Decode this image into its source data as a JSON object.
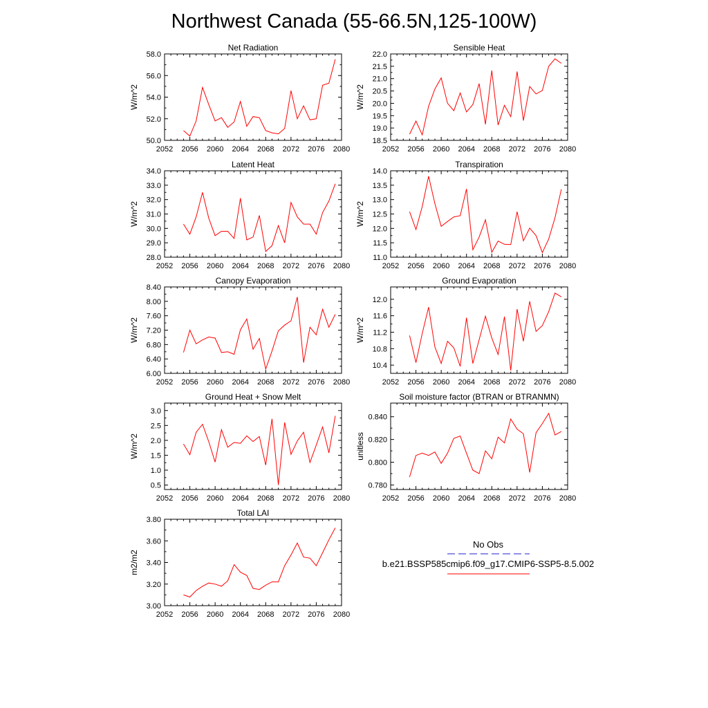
{
  "title": "Northwest Canada (55-66.5N,125-100W)",
  "legend": {
    "entries": [
      {
        "label": "No Obs",
        "color": "#1f1fcc",
        "style": "dashed"
      },
      {
        "label": "b.e21.BSSP585cmip6.f09_g17.CMIP6-SSP5-8.5.002",
        "color": "#ff0000",
        "style": "solid"
      }
    ]
  },
  "chart_data": [
    {
      "type": "line",
      "title": "Net Radiation",
      "ylabel": "W/m^2",
      "xlim": [
        2052,
        2080
      ],
      "xticks": [
        "2052",
        "2056",
        "2060",
        "2064",
        "2068",
        "2072",
        "2076",
        "2080"
      ],
      "ylim": [
        50,
        58
      ],
      "yticks": [
        "50.0",
        "52.0",
        "54.0",
        "56.0",
        "58.0"
      ],
      "x": [
        2055,
        2056,
        2057,
        2058,
        2059,
        2060,
        2061,
        2062,
        2063,
        2064,
        2065,
        2066,
        2067,
        2068,
        2069,
        2070,
        2071,
        2072,
        2073,
        2074,
        2075,
        2076,
        2077,
        2078,
        2079
      ],
      "series": [
        {
          "color": "#ff0000",
          "values": [
            50.9,
            50.4,
            51.8,
            54.9,
            53.3,
            51.8,
            52.1,
            51.2,
            51.7,
            53.6,
            51.3,
            52.2,
            52.1,
            50.9,
            50.7,
            50.6,
            51.1,
            54.6,
            52.0,
            53.2,
            51.9,
            52.0,
            55.1,
            55.3,
            57.5
          ]
        }
      ]
    },
    {
      "type": "line",
      "title": "Sensible Heat",
      "ylabel": "W/m^2",
      "xlim": [
        2052,
        2080
      ],
      "xticks": [
        "2052",
        "2056",
        "2060",
        "2064",
        "2068",
        "2072",
        "2076",
        "2080"
      ],
      "ylim": [
        18.5,
        22.0
      ],
      "yticks": [
        "18.5",
        "19.0",
        "19.5",
        "20.0",
        "20.5",
        "21.0",
        "21.5",
        "22.0"
      ],
      "x": [
        2055,
        2056,
        2057,
        2058,
        2059,
        2060,
        2061,
        2062,
        2063,
        2064,
        2065,
        2066,
        2067,
        2068,
        2069,
        2070,
        2071,
        2072,
        2073,
        2074,
        2075,
        2076,
        2077,
        2078,
        2079
      ],
      "series": [
        {
          "color": "#ff0000",
          "values": [
            18.75,
            19.28,
            18.72,
            19.88,
            20.58,
            21.03,
            20.0,
            19.7,
            20.42,
            19.65,
            19.95,
            20.8,
            19.15,
            21.33,
            19.12,
            19.92,
            19.46,
            21.29,
            19.3,
            20.68,
            20.38,
            20.52,
            21.5,
            21.8,
            21.62
          ]
        }
      ]
    },
    {
      "type": "line",
      "title": "Latent Heat",
      "ylabel": "W/m^2",
      "xlim": [
        2052,
        2080
      ],
      "xticks": [
        "2052",
        "2056",
        "2060",
        "2064",
        "2068",
        "2072",
        "2076",
        "2080"
      ],
      "ylim": [
        28,
        34
      ],
      "yticks": [
        "28.0",
        "29.0",
        "30.0",
        "31.0",
        "32.0",
        "33.0",
        "34.0"
      ],
      "x": [
        2055,
        2056,
        2057,
        2058,
        2059,
        2060,
        2061,
        2062,
        2063,
        2064,
        2065,
        2066,
        2067,
        2068,
        2069,
        2070,
        2071,
        2072,
        2073,
        2074,
        2075,
        2076,
        2077,
        2078,
        2079
      ],
      "series": [
        {
          "color": "#ff0000",
          "values": [
            30.3,
            29.6,
            30.8,
            32.5,
            30.7,
            29.5,
            29.8,
            29.8,
            29.3,
            32.1,
            29.2,
            29.4,
            30.9,
            28.4,
            28.8,
            30.2,
            29.0,
            31.8,
            30.8,
            30.3,
            30.3,
            29.6,
            31.1,
            31.9,
            33.1
          ]
        }
      ]
    },
    {
      "type": "line",
      "title": "Transpiration",
      "ylabel": "W/m^2",
      "xlim": [
        2052,
        2080
      ],
      "xticks": [
        "2052",
        "2056",
        "2060",
        "2064",
        "2068",
        "2072",
        "2076",
        "2080"
      ],
      "ylim": [
        11.0,
        14.0
      ],
      "yticks": [
        "11.0",
        "11.5",
        "12.0",
        "12.5",
        "13.0",
        "13.5",
        "14.0"
      ],
      "x": [
        2055,
        2056,
        2057,
        2058,
        2059,
        2060,
        2061,
        2062,
        2063,
        2064,
        2065,
        2066,
        2067,
        2068,
        2069,
        2070,
        2071,
        2072,
        2073,
        2074,
        2075,
        2076,
        2077,
        2078,
        2079
      ],
      "series": [
        {
          "color": "#ff0000",
          "values": [
            12.58,
            11.96,
            12.76,
            13.81,
            12.86,
            12.07,
            12.24,
            12.4,
            12.44,
            13.37,
            11.26,
            11.7,
            12.3,
            11.17,
            11.56,
            11.45,
            11.44,
            12.58,
            11.57,
            12.01,
            11.75,
            11.16,
            11.63,
            12.37,
            13.36
          ]
        }
      ]
    },
    {
      "type": "line",
      "title": "Canopy Evaporation",
      "ylabel": "W/m^2",
      "xlim": [
        2052,
        2080
      ],
      "xticks": [
        "2052",
        "2056",
        "2060",
        "2064",
        "2068",
        "2072",
        "2076",
        "2080"
      ],
      "ylim": [
        6.0,
        8.4
      ],
      "yticks": [
        "6.00",
        "6.40",
        "6.80",
        "7.20",
        "7.60",
        "8.00",
        "8.40"
      ],
      "x": [
        2055,
        2056,
        2057,
        2058,
        2059,
        2060,
        2061,
        2062,
        2063,
        2064,
        2065,
        2066,
        2067,
        2068,
        2069,
        2070,
        2071,
        2072,
        2073,
        2074,
        2075,
        2076,
        2077,
        2078,
        2079
      ],
      "series": [
        {
          "color": "#ff0000",
          "values": [
            6.58,
            7.2,
            6.82,
            6.93,
            7.01,
            6.98,
            6.58,
            6.6,
            6.53,
            7.21,
            7.51,
            6.67,
            6.97,
            6.12,
            6.62,
            7.18,
            7.34,
            7.46,
            8.12,
            6.3,
            7.28,
            7.07,
            7.78,
            7.28,
            7.64
          ]
        }
      ]
    },
    {
      "type": "line",
      "title": "Ground Evaporation",
      "ylabel": "W/m^2",
      "xlim": [
        2052,
        2080
      ],
      "xticks": [
        "2052",
        "2056",
        "2060",
        "2064",
        "2068",
        "2072",
        "2076",
        "2080"
      ],
      "ylim": [
        10.2,
        12.3
      ],
      "yticks": [
        "10.4",
        "10.8",
        "11.2",
        "11.6",
        "12.0"
      ],
      "x": [
        2055,
        2056,
        2057,
        2058,
        2059,
        2060,
        2061,
        2062,
        2063,
        2064,
        2065,
        2066,
        2067,
        2068,
        2069,
        2070,
        2071,
        2072,
        2073,
        2074,
        2075,
        2076,
        2077,
        2078,
        2079
      ],
      "series": [
        {
          "color": "#ff0000",
          "values": [
            11.12,
            10.46,
            11.17,
            11.81,
            10.84,
            10.44,
            10.98,
            10.82,
            10.37,
            11.55,
            10.44,
            11.02,
            11.59,
            11.06,
            10.66,
            11.58,
            10.27,
            11.76,
            10.98,
            11.95,
            11.22,
            11.36,
            11.7,
            12.15,
            12.06
          ]
        }
      ]
    },
    {
      "type": "line",
      "title": "Ground Heat + Snow Melt",
      "ylabel": "W/m^2",
      "xlim": [
        2052,
        2080
      ],
      "xticks": [
        "2052",
        "2056",
        "2060",
        "2064",
        "2068",
        "2072",
        "2076",
        "2080"
      ],
      "ylim": [
        0.35,
        3.25
      ],
      "yticks": [
        "0.5",
        "1.0",
        "1.5",
        "2.0",
        "2.5",
        "3.0"
      ],
      "x": [
        2055,
        2056,
        2057,
        2058,
        2059,
        2060,
        2061,
        2062,
        2063,
        2064,
        2065,
        2066,
        2067,
        2068,
        2069,
        2070,
        2071,
        2072,
        2073,
        2074,
        2075,
        2076,
        2077,
        2078,
        2079
      ],
      "series": [
        {
          "color": "#ff0000",
          "values": [
            1.88,
            1.52,
            2.27,
            2.54,
            1.95,
            1.27,
            2.36,
            1.77,
            1.93,
            1.9,
            2.15,
            1.96,
            2.13,
            1.17,
            2.72,
            0.5,
            2.6,
            1.53,
            1.98,
            2.27,
            1.26,
            1.84,
            2.45,
            1.58,
            2.82
          ]
        }
      ]
    },
    {
      "type": "line",
      "title": "Soil moisture factor (BTRAN or BTRANMN)",
      "ylabel": "unitless",
      "xlim": [
        2052,
        2080
      ],
      "xticks": [
        "2052",
        "2056",
        "2060",
        "2064",
        "2068",
        "2072",
        "2076",
        "2080"
      ],
      "ylim": [
        0.776,
        0.852
      ],
      "yticks": [
        "0.780",
        "0.800",
        "0.820",
        "0.840"
      ],
      "x": [
        2055,
        2056,
        2057,
        2058,
        2059,
        2060,
        2061,
        2062,
        2063,
        2064,
        2065,
        2066,
        2067,
        2068,
        2069,
        2070,
        2071,
        2072,
        2073,
        2074,
        2075,
        2076,
        2077,
        2078,
        2079
      ],
      "series": [
        {
          "color": "#ff0000",
          "values": [
            0.787,
            0.806,
            0.808,
            0.806,
            0.809,
            0.799,
            0.808,
            0.821,
            0.823,
            0.808,
            0.793,
            0.79,
            0.81,
            0.803,
            0.822,
            0.817,
            0.838,
            0.829,
            0.825,
            0.791,
            0.826,
            0.834,
            0.843,
            0.824,
            0.827
          ]
        }
      ]
    },
    {
      "type": "line",
      "title": "Total LAI",
      "ylabel": "m2/m2",
      "xlim": [
        2052,
        2080
      ],
      "xticks": [
        "2052",
        "2056",
        "2060",
        "2064",
        "2068",
        "2072",
        "2076",
        "2080"
      ],
      "ylim": [
        3.0,
        3.8
      ],
      "yticks": [
        "3.00",
        "3.20",
        "3.40",
        "3.60",
        "3.80"
      ],
      "x": [
        2055,
        2056,
        2057,
        2058,
        2059,
        2060,
        2061,
        2062,
        2063,
        2064,
        2065,
        2066,
        2067,
        2068,
        2069,
        2070,
        2071,
        2072,
        2073,
        2074,
        2075,
        2076,
        2077,
        2078,
        2079
      ],
      "series": [
        {
          "color": "#ff0000",
          "values": [
            3.1,
            3.08,
            3.14,
            3.18,
            3.21,
            3.2,
            3.18,
            3.23,
            3.38,
            3.31,
            3.28,
            3.16,
            3.15,
            3.19,
            3.22,
            3.22,
            3.37,
            3.47,
            3.58,
            3.45,
            3.44,
            3.37,
            3.49,
            3.61,
            3.72
          ]
        }
      ]
    }
  ]
}
